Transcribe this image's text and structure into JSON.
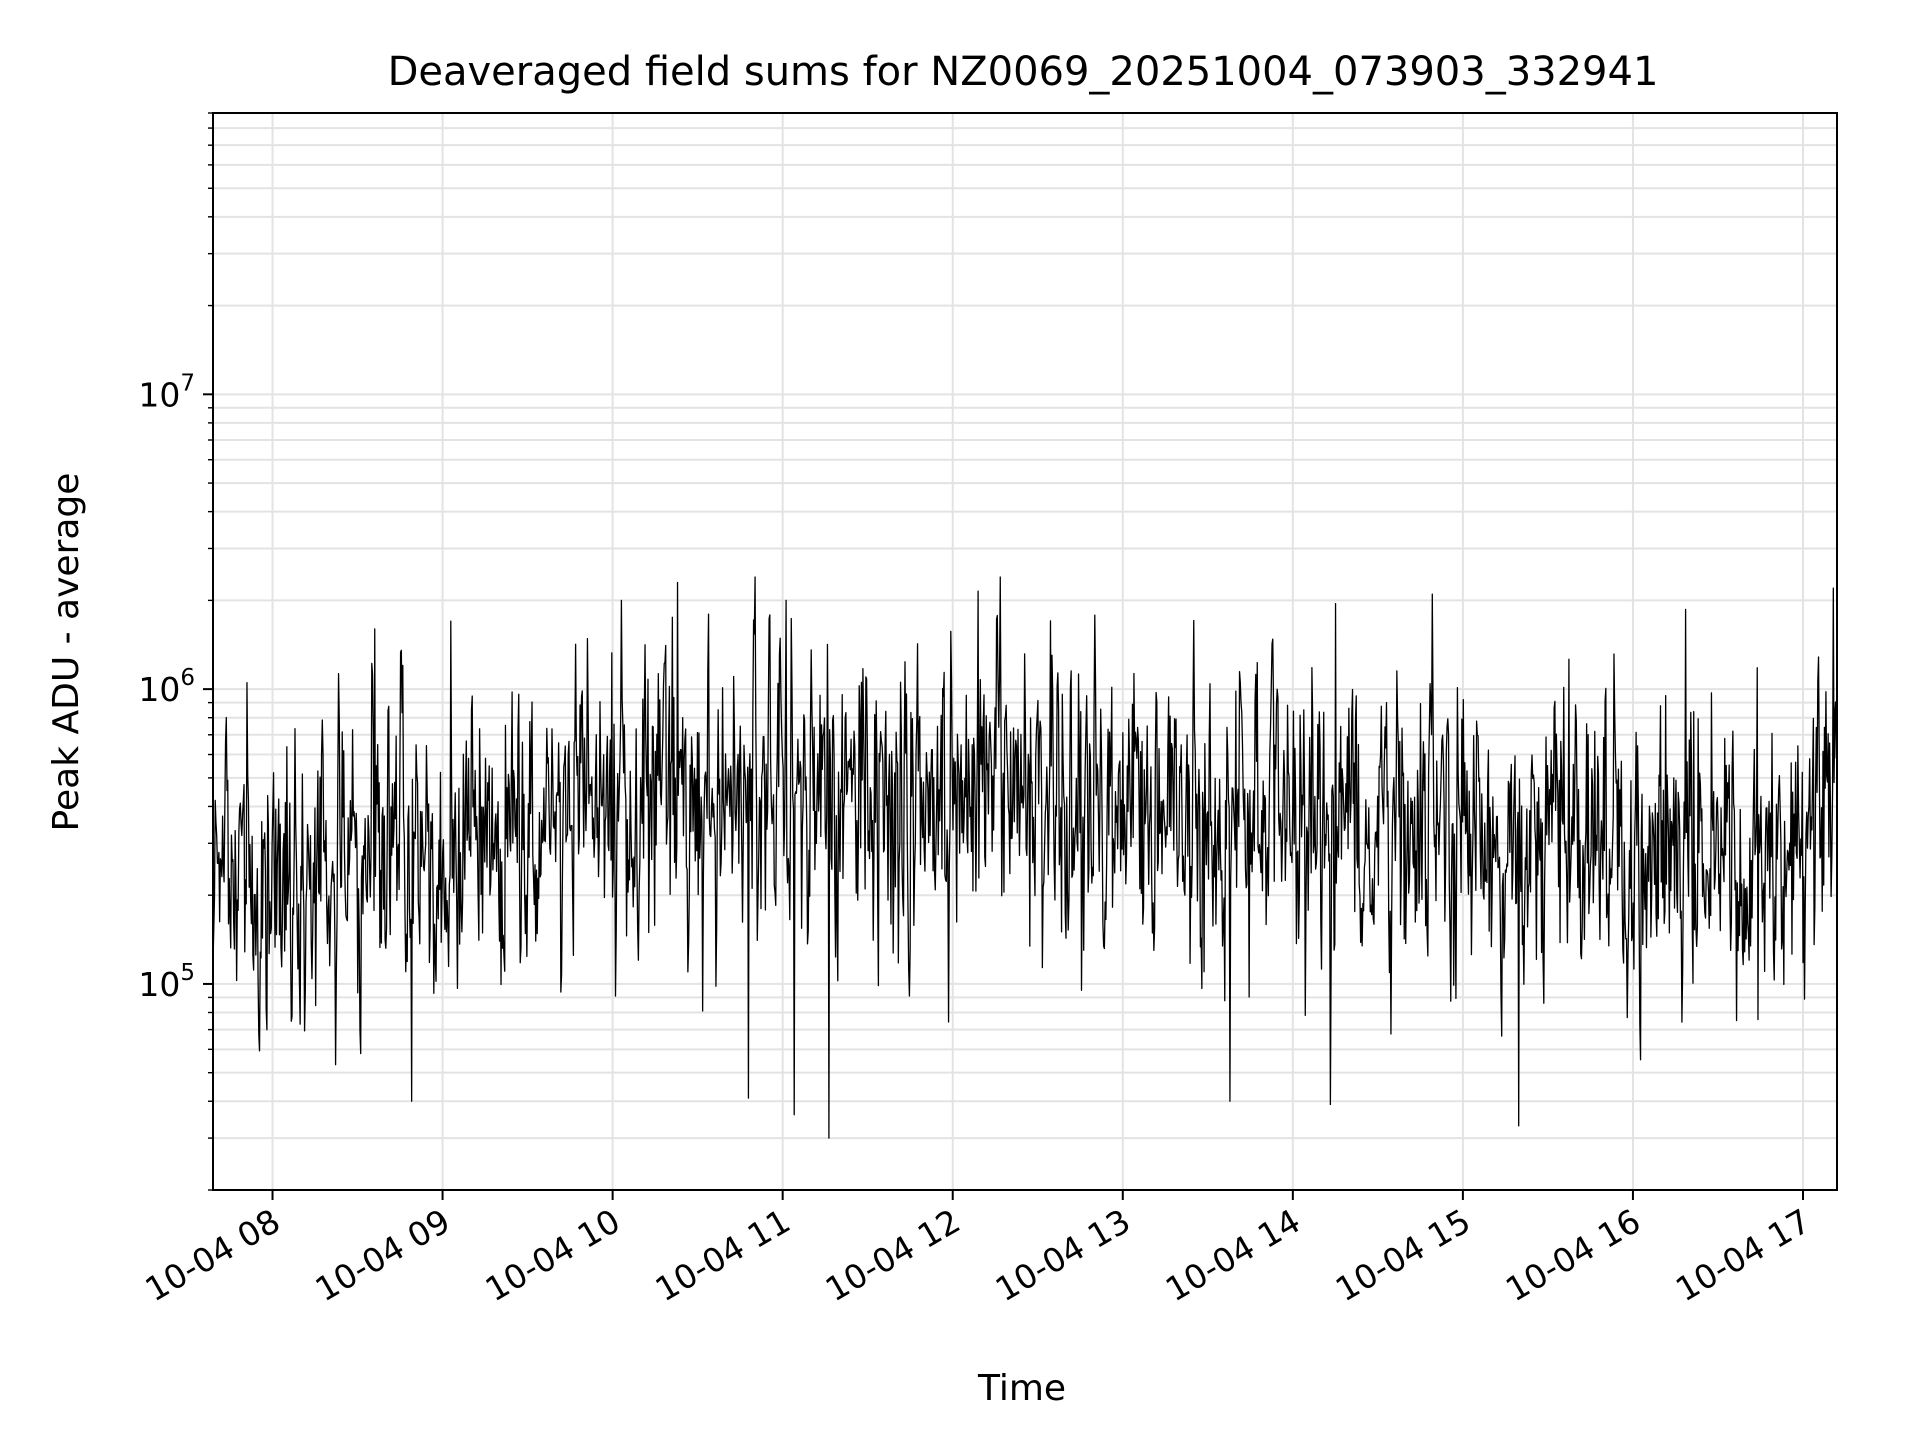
{
  "chart_data": {
    "type": "line",
    "title": "Deaveraged field sums for NZ0069_20251004_073903_332941",
    "xlabel": "Time",
    "ylabel": "Peak ADU - average",
    "yscale": "log",
    "ylim": [
      20000,
      90000000
    ],
    "xlim_hours": [
      7.65,
      17.2
    ],
    "grid": true,
    "legend": "none",
    "x_ticks": [
      {
        "hour": 8,
        "label": "10-04 08"
      },
      {
        "hour": 9,
        "label": "10-04 09"
      },
      {
        "hour": 10,
        "label": "10-04 10"
      },
      {
        "hour": 11,
        "label": "10-04 11"
      },
      {
        "hour": 12,
        "label": "10-04 12"
      },
      {
        "hour": 13,
        "label": "10-04 13"
      },
      {
        "hour": 14,
        "label": "10-04 14"
      },
      {
        "hour": 15,
        "label": "10-04 15"
      },
      {
        "hour": 16,
        "label": "10-04 16"
      },
      {
        "hour": 17,
        "label": "10-04 17"
      }
    ],
    "y_ticks": [
      {
        "value": 100000,
        "base": "10",
        "exp": "5"
      },
      {
        "value": 1000000,
        "base": "10",
        "exp": "6"
      },
      {
        "value": 10000000,
        "base": "10",
        "exp": "7"
      }
    ],
    "series": [
      {
        "name": "Peak ADU - average",
        "color": "#000000",
        "samples": 2200,
        "seed": 69,
        "envelope": [
          {
            "hour": 7.65,
            "median": 250000
          },
          {
            "hour": 8.3,
            "median": 230000
          },
          {
            "hour": 8.6,
            "median": 260000
          },
          {
            "hour": 8.75,
            "median": 420000
          },
          {
            "hour": 9.0,
            "median": 210000
          },
          {
            "hour": 9.2,
            "median": 300000
          },
          {
            "hour": 9.8,
            "median": 360000
          },
          {
            "hour": 10.3,
            "median": 420000
          },
          {
            "hour": 11.0,
            "median": 450000
          },
          {
            "hour": 11.5,
            "median": 380000
          },
          {
            "hour": 12.0,
            "median": 460000
          },
          {
            "hour": 12.5,
            "median": 380000
          },
          {
            "hour": 13.0,
            "median": 390000
          },
          {
            "hour": 13.6,
            "median": 420000
          },
          {
            "hour": 14.3,
            "median": 380000
          },
          {
            "hour": 15.0,
            "median": 340000
          },
          {
            "hour": 15.5,
            "median": 330000
          },
          {
            "hour": 16.0,
            "median": 250000
          },
          {
            "hour": 16.8,
            "median": 280000
          },
          {
            "hour": 17.1,
            "median": 380000
          },
          {
            "hour": 17.2,
            "median": 700000
          }
        ],
        "peaks": [
          {
            "hour": 8.6,
            "value": 1600000
          },
          {
            "hour": 9.05,
            "value": 1700000
          },
          {
            "hour": 10.05,
            "value": 2000000
          },
          {
            "hour": 10.38,
            "value": 2300000
          },
          {
            "hour": 11.02,
            "value": 2000000
          },
          {
            "hour": 12.15,
            "value": 2150000
          },
          {
            "hour": 14.25,
            "value": 1950000
          },
          {
            "hour": 14.82,
            "value": 2100000
          },
          {
            "hour": 17.18,
            "value": 2200000
          }
        ],
        "troughs": [
          {
            "hour": 8.82,
            "value": 40000
          },
          {
            "hour": 10.8,
            "value": 41000
          },
          {
            "hour": 11.07,
            "value": 36000
          },
          {
            "hour": 11.27,
            "value": 30000
          },
          {
            "hour": 13.63,
            "value": 40000
          },
          {
            "hour": 14.22,
            "value": 39000
          },
          {
            "hour": 15.33,
            "value": 33000
          }
        ]
      }
    ]
  }
}
